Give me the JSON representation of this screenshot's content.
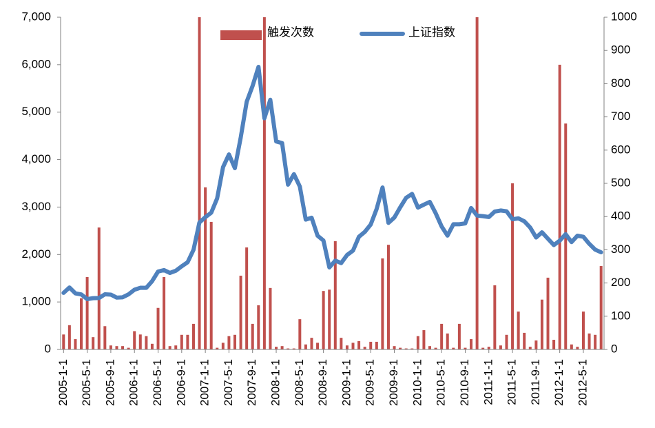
{
  "chart_data": {
    "type": "bar+line",
    "categories": [
      "2005-1-1",
      null,
      null,
      null,
      "2005-5-1",
      null,
      null,
      null,
      "2005-9-1",
      null,
      null,
      null,
      "2006-1-1",
      null,
      null,
      null,
      "2006-5-1",
      null,
      null,
      null,
      "2006-9-1",
      null,
      null,
      null,
      "2007-1-1",
      null,
      null,
      null,
      "2007-5-1",
      null,
      null,
      null,
      "2007-9-1",
      null,
      null,
      null,
      "2008-1-1",
      null,
      null,
      null,
      "2008-5-1",
      null,
      null,
      null,
      "2008-9-1",
      null,
      null,
      null,
      "2009-1-1",
      null,
      null,
      null,
      "2009-5-1",
      null,
      null,
      null,
      "2009-9-1",
      null,
      null,
      null,
      "2010-1-1",
      null,
      null,
      null,
      "2010-5-1",
      null,
      null,
      null,
      "2010-9-1",
      null,
      null,
      null,
      "2011-1-1",
      null,
      null,
      null,
      "2011-5-1",
      null,
      null,
      null,
      "2011-9-1",
      null,
      null,
      null,
      "2012-1-1",
      null,
      null,
      null,
      "2012-5-1",
      null,
      null,
      null
    ],
    "series": [
      {
        "name": "触发次数",
        "type": "bar",
        "axis": "y2",
        "color": "#c0504d",
        "values": [
          45,
          73,
          31,
          154,
          218,
          37,
          367,
          70,
          12,
          10,
          10,
          5,
          55,
          45,
          40,
          17,
          125,
          218,
          10,
          12,
          44,
          44,
          77,
          1000,
          488,
          384,
          5,
          20,
          40,
          44,
          222,
          307,
          77,
          133,
          1000,
          185,
          8,
          10,
          3,
          3,
          91,
          15,
          35,
          20,
          176,
          180,
          326,
          35,
          12,
          20,
          25,
          8,
          23,
          23,
          274,
          315,
          10,
          5,
          3,
          3,
          40,
          58,
          10,
          5,
          77,
          48,
          5,
          77,
          5,
          31,
          1000,
          5,
          8,
          193,
          12,
          44,
          500,
          114,
          50,
          8,
          27,
          150,
          216,
          29,
          857,
          680,
          15,
          8,
          114,
          48,
          44,
          251
        ]
      },
      {
        "name": "上证指数",
        "type": "line",
        "axis": "y",
        "color": "#4f81bd",
        "values": [
          1192,
          1306,
          1181,
          1159,
          1060,
          1080,
          1083,
          1162,
          1155,
          1092,
          1099,
          1161,
          1258,
          1299,
          1298,
          1440,
          1641,
          1672,
          1612,
          1658,
          1752,
          1837,
          2099,
          2675,
          2786,
          2881,
          3183,
          3841,
          4109,
          3820,
          4471,
          5218,
          5552,
          5954,
          4871,
          5261,
          4383,
          4348,
          3472,
          3693,
          3433,
          2736,
          2775,
          2397,
          2293,
          1728,
          1871,
          1820,
          1990,
          2082,
          2373,
          2477,
          2632,
          2959,
          3412,
          2667,
          2779,
          2995,
          3195,
          3277,
          2989,
          3051,
          3109,
          2870,
          2592,
          2398,
          2638,
          2638,
          2656,
          2979,
          2820,
          2808,
          2790,
          2905,
          2928,
          2911,
          2743,
          2762,
          2701,
          2568,
          2359,
          2468,
          2333,
          2199,
          2292,
          2428,
          2262,
          2397,
          2373,
          2225,
          2103,
          2047
        ]
      }
    ],
    "ylim": [
      0,
      7000
    ],
    "yticks": [
      0,
      {
        "value": 1000,
        "label": "1,000"
      },
      {
        "value": 2000,
        "label": "2,000"
      },
      {
        "value": 3000,
        "label": "3,000"
      },
      {
        "value": 4000,
        "label": "4,000"
      },
      {
        "value": 5000,
        "label": "5,000"
      },
      {
        "value": 6000,
        "label": "6,000"
      },
      {
        "value": 7000,
        "label": "7,000"
      }
    ],
    "y2lim": [
      0,
      1000
    ],
    "y2ticks": [
      0,
      100,
      200,
      300,
      400,
      500,
      600,
      700,
      800,
      900,
      1000
    ],
    "legend": "top"
  }
}
